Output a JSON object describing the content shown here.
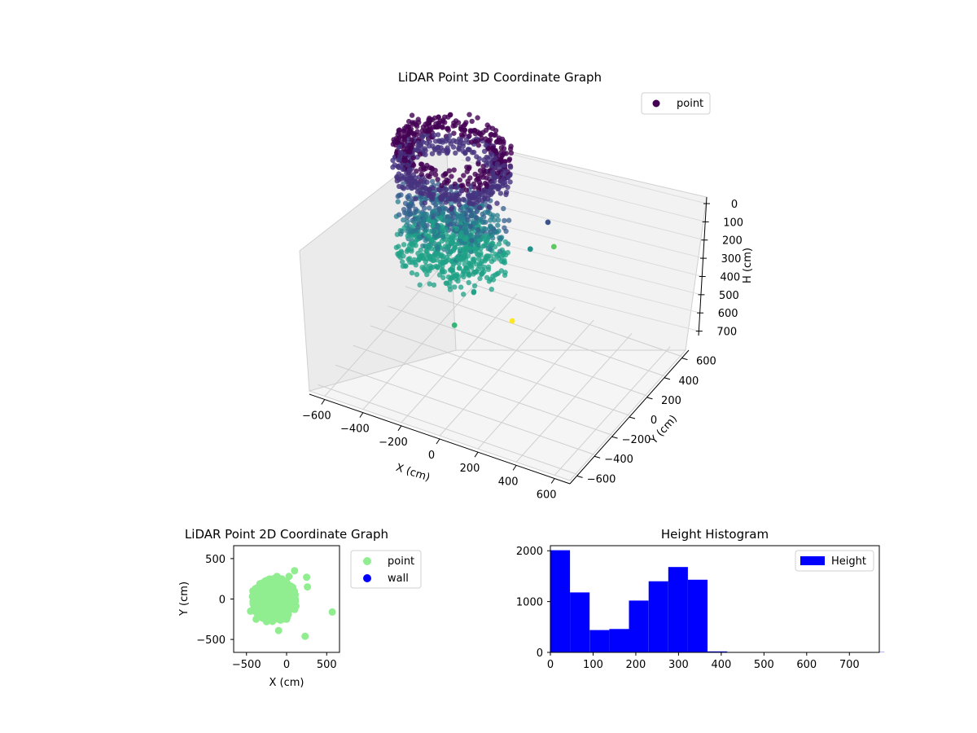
{
  "figure": {
    "background": "#ffffff"
  },
  "chart_data": [
    {
      "type": "scatter",
      "projection": "3d",
      "title": "LiDAR Point 3D Coordinate Graph",
      "xlabel": "X (cm)",
      "ylabel": "Y (cm)",
      "zlabel": "H (cm)",
      "xticks": [
        -600,
        -400,
        -200,
        0,
        200,
        400,
        600
      ],
      "yticks": [
        -600,
        -400,
        -200,
        0,
        200,
        400,
        600
      ],
      "zticks": [
        0,
        100,
        200,
        300,
        400,
        500,
        600,
        700
      ],
      "xlim": [
        -680,
        680
      ],
      "ylim": [
        -680,
        680
      ],
      "zlim": [
        0,
        760
      ],
      "z_inverted": true,
      "grid": true,
      "colormap": "viridis",
      "legend": {
        "position": "top-right",
        "entries": [
          {
            "label": "point",
            "color": "#440154"
          }
        ]
      },
      "series": [
        {
          "name": "point",
          "description_shape": "dense ring of points around a central column",
          "outliers": [
            {
              "x": 150,
              "y": 40,
              "h": 700,
              "color": "#fde725"
            },
            {
              "x": 40,
              "y": -380,
              "h": 580,
              "color": "#35b779"
            },
            {
              "x": 330,
              "y": 60,
              "h": 260,
              "color": "#3b528b"
            },
            {
              "x": 320,
              "y": -120,
              "h": 300,
              "color": "#21918c"
            },
            {
              "x": 380,
              "y": 20,
              "h": 330,
              "color": "#5ec962"
            }
          ]
        }
      ]
    },
    {
      "type": "scatter",
      "title": "LiDAR Point 2D Coordinate Graph",
      "xlabel": "X (cm)",
      "ylabel": "Y (cm)",
      "xticks": [
        -500,
        0,
        500
      ],
      "yticks": [
        -500,
        0,
        500
      ],
      "xlim": [
        -660,
        660
      ],
      "ylim": [
        -660,
        660
      ],
      "legend": {
        "position": "right",
        "entries": [
          {
            "label": "point",
            "color": "#90ee90"
          },
          {
            "label": "wall",
            "color": "#0000ff"
          }
        ]
      },
      "series": [
        {
          "name": "point",
          "color": "#90ee90",
          "points": [
            [
              -150,
              0
            ],
            [
              -250,
              120
            ],
            [
              -80,
              -150
            ],
            [
              -350,
              -50
            ],
            [
              20,
              80
            ],
            [
              -200,
              -200
            ],
            [
              -420,
              100
            ],
            [
              -300,
              200
            ],
            [
              -60,
              250
            ],
            [
              0,
              -250
            ],
            [
              -450,
              -150
            ],
            [
              -120,
              280
            ],
            [
              -380,
              -250
            ],
            [
              80,
              0
            ],
            [
              -250,
              -280
            ],
            [
              100,
              350
            ],
            [
              250,
              270
            ],
            [
              260,
              150
            ],
            [
              570,
              -160
            ],
            [
              230,
              -460
            ],
            [
              -100,
              -390
            ],
            [
              30,
              280
            ]
          ]
        },
        {
          "name": "wall",
          "color": "#0000ff",
          "points": []
        }
      ]
    },
    {
      "type": "bar",
      "title": "Height Histogram",
      "xlabel": "",
      "ylabel": "",
      "xticks": [
        0,
        100,
        200,
        300,
        400,
        500,
        600,
        700
      ],
      "yticks": [
        0,
        1000,
        2000
      ],
      "xlim": [
        0,
        770
      ],
      "ylim": [
        0,
        2100
      ],
      "legend": {
        "position": "top-right",
        "entries": [
          {
            "label": "Height",
            "color": "#0000ff"
          }
        ]
      },
      "bin_width": 46,
      "bins": [
        {
          "start": 0,
          "value": 2010
        },
        {
          "start": 46,
          "value": 1180
        },
        {
          "start": 92,
          "value": 440
        },
        {
          "start": 138,
          "value": 460
        },
        {
          "start": 184,
          "value": 1020
        },
        {
          "start": 230,
          "value": 1400
        },
        {
          "start": 276,
          "value": 1680
        },
        {
          "start": 322,
          "value": 1430
        },
        {
          "start": 368,
          "value": 20
        },
        {
          "start": 414,
          "value": 0
        },
        {
          "start": 460,
          "value": 0
        },
        {
          "start": 506,
          "value": 0
        },
        {
          "start": 552,
          "value": 0
        },
        {
          "start": 598,
          "value": 0
        },
        {
          "start": 644,
          "value": 0
        },
        {
          "start": 690,
          "value": 0
        },
        {
          "start": 736,
          "value": 5
        }
      ],
      "color": "#0000ff"
    }
  ]
}
